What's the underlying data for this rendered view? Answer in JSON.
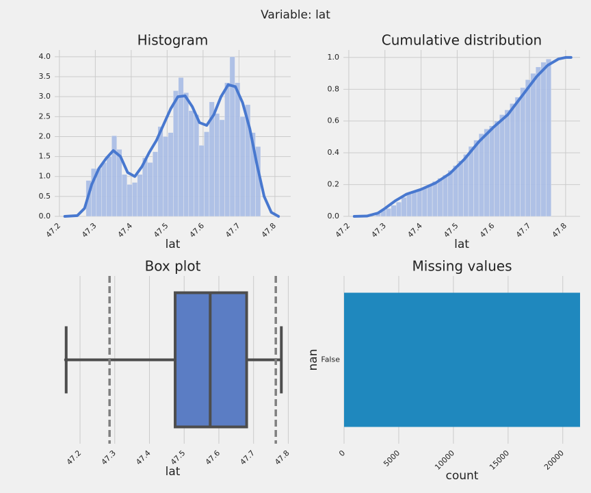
{
  "title": "Variable: lat",
  "chart_data": [
    {
      "type": "histogram",
      "title": "Histogram",
      "x_label": "lat",
      "bins": [
        47.274,
        47.2883,
        47.3026,
        47.3169,
        47.3312,
        47.3455,
        47.3598,
        47.3741,
        47.3884,
        47.4027,
        47.417,
        47.4313,
        47.4456,
        47.4599,
        47.4742,
        47.4885,
        47.5028,
        47.5171,
        47.5314,
        47.5457,
        47.56,
        47.5743,
        47.5886,
        47.6029,
        47.6172,
        47.6315,
        47.6458,
        47.6601,
        47.6744,
        47.6887,
        47.703,
        47.7173,
        47.7316,
        47.7459,
        47.7602
      ],
      "values": [
        0.9,
        1.2,
        1.2,
        1.35,
        1.5,
        2.02,
        1.68,
        1.05,
        0.8,
        0.85,
        1.05,
        1.47,
        1.35,
        1.62,
        2.25,
        2.0,
        2.1,
        3.15,
        3.48,
        3.1,
        2.65,
        2.55,
        1.78,
        2.12,
        2.87,
        2.58,
        2.42,
        3.35,
        4.0,
        3.35,
        2.5,
        2.8,
        2.1,
        1.75
      ],
      "color": "#a9bde6",
      "line": {
        "x": [
          47.215,
          47.25,
          47.27,
          47.29,
          47.31,
          47.33,
          47.35,
          47.37,
          47.39,
          47.41,
          47.43,
          47.45,
          47.47,
          47.49,
          47.51,
          47.53,
          47.55,
          47.57,
          47.59,
          47.61,
          47.63,
          47.65,
          47.67,
          47.69,
          47.71,
          47.73,
          47.75,
          47.77,
          47.79,
          47.81
        ],
        "values": [
          0,
          0.02,
          0.2,
          0.8,
          1.2,
          1.45,
          1.65,
          1.5,
          1.1,
          1.0,
          1.25,
          1.6,
          1.9,
          2.3,
          2.7,
          3.0,
          3.02,
          2.75,
          2.35,
          2.28,
          2.55,
          3.0,
          3.3,
          3.25,
          2.85,
          2.2,
          1.3,
          0.5,
          0.1,
          0
        ],
        "color": "#4878cf"
      },
      "xlim": [
        47.187,
        47.844
      ],
      "ylim": [
        0,
        4.17
      ],
      "xticks": [
        47.2,
        47.3,
        47.4,
        47.5,
        47.6,
        47.7,
        47.8
      ],
      "yticks": [
        {
          "value": 0,
          "label": "0.0"
        },
        0.5,
        {
          "value": 1,
          "label": "1.0"
        },
        1.5,
        {
          "value": 2,
          "label": "2.0"
        },
        2.5,
        {
          "value": 3,
          "label": "3.0"
        },
        3.5,
        {
          "value": 4,
          "label": "4.0"
        }
      ],
      "grid": true
    },
    {
      "type": "histogram",
      "title": "Cumulative distribution",
      "x_label": "lat",
      "bins": [
        47.274,
        47.2883,
        47.3026,
        47.3169,
        47.3312,
        47.3455,
        47.3598,
        47.3741,
        47.3884,
        47.4027,
        47.417,
        47.4313,
        47.4456,
        47.4599,
        47.4742,
        47.4885,
        47.5028,
        47.5171,
        47.5314,
        47.5457,
        47.56,
        47.5743,
        47.5886,
        47.6029,
        47.6172,
        47.6315,
        47.6458,
        47.6601,
        47.6744,
        47.6887,
        47.703,
        47.7173,
        47.7316,
        47.7459,
        47.7602
      ],
      "values": [
        0.02,
        0.04,
        0.05,
        0.07,
        0.09,
        0.12,
        0.14,
        0.16,
        0.17,
        0.18,
        0.2,
        0.22,
        0.24,
        0.26,
        0.29,
        0.32,
        0.35,
        0.39,
        0.44,
        0.48,
        0.52,
        0.55,
        0.57,
        0.6,
        0.64,
        0.67,
        0.71,
        0.75,
        0.81,
        0.86,
        0.9,
        0.94,
        0.97,
        0.99
      ],
      "color": "#a9bde6",
      "line": {
        "x": [
          47.215,
          47.25,
          47.28,
          47.3,
          47.33,
          47.36,
          47.4,
          47.44,
          47.48,
          47.52,
          47.56,
          47.6,
          47.64,
          47.68,
          47.72,
          47.75,
          47.78,
          47.8,
          47.815
        ],
        "values": [
          0,
          0.002,
          0.02,
          0.05,
          0.1,
          0.14,
          0.17,
          0.21,
          0.27,
          0.36,
          0.47,
          0.56,
          0.64,
          0.76,
          0.88,
          0.95,
          0.99,
          1.0,
          1.0
        ],
        "color": "#4878cf"
      },
      "xlim": [
        47.185,
        47.84
      ],
      "ylim": [
        0,
        1.047
      ],
      "xticks": [
        47.2,
        47.3,
        47.4,
        47.5,
        47.6,
        47.7,
        47.8
      ],
      "yticks": [
        {
          "value": 0,
          "label": "0.0"
        },
        0.2,
        0.4,
        0.6,
        0.8,
        {
          "value": 1,
          "label": "1.0"
        }
      ],
      "grid": true
    },
    {
      "type": "box",
      "title": "Box plot",
      "x_label": "lat",
      "whisker_low": 47.16,
      "q1": 47.474,
      "median": 47.575,
      "q3": 47.68,
      "whisker_high": 47.78,
      "reference_lines": [
        47.285,
        47.764
      ],
      "color": "#5b7dc4",
      "edge_color": "#4d4d4d",
      "reference_color": "#808080",
      "xlim": [
        47.127,
        47.807
      ],
      "xticks": [
        47.2,
        47.3,
        47.4,
        47.5,
        47.6,
        47.7,
        47.8
      ],
      "grid": true
    },
    {
      "type": "barh",
      "title": "Missing values",
      "x_label": "count",
      "y_label": "nan",
      "categories": [
        "False"
      ],
      "values": [
        21580
      ],
      "color": "#1f88be",
      "xlim": [
        0,
        21580
      ],
      "xticks": [
        0,
        5000,
        10000,
        15000,
        20000
      ],
      "grid": true
    }
  ]
}
